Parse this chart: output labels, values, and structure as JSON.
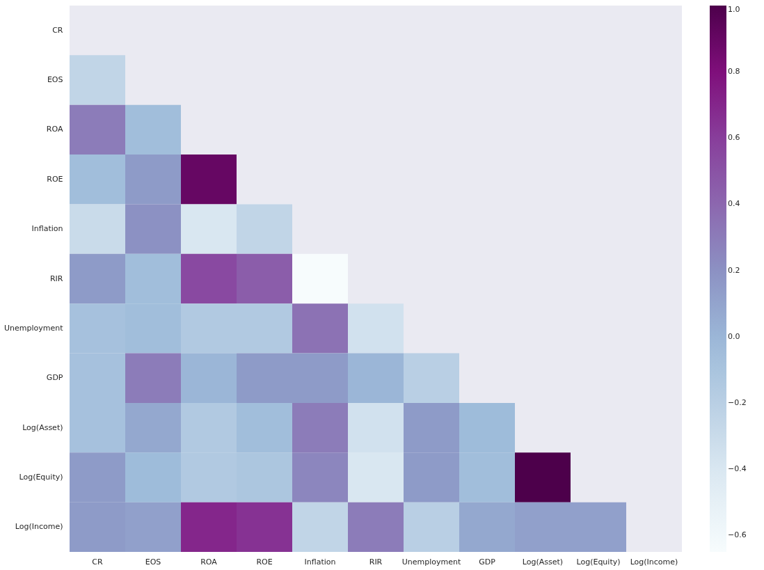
{
  "chart_data": {
    "type": "heatmap",
    "categories": [
      "CR",
      "EOS",
      "ROA",
      "ROE",
      "Inflation",
      "RIR",
      "Unemployment",
      "GDP",
      "Log(Asset)",
      "Log(Equity)",
      "Log(Income)"
    ],
    "y_categories": [
      "CR",
      "EOS",
      "ROA",
      "ROE",
      "Inflation",
      "RIR",
      "Unemployment",
      "GDP",
      "Log(Asset)",
      "Log(Equity)",
      "Log(Income)"
    ],
    "cells": [
      [
        null,
        null,
        null,
        null,
        null,
        null,
        null,
        null,
        null,
        null,
        null
      ],
      [
        -0.25,
        null,
        null,
        null,
        null,
        null,
        null,
        null,
        null,
        null,
        null
      ],
      [
        0.3,
        -0.05,
        null,
        null,
        null,
        null,
        null,
        null,
        null,
        null,
        null
      ],
      [
        -0.05,
        0.15,
        0.9,
        null,
        null,
        null,
        null,
        null,
        null,
        null,
        null
      ],
      [
        -0.3,
        0.2,
        -0.4,
        -0.25,
        null,
        null,
        null,
        null,
        null,
        null,
        null
      ],
      [
        0.15,
        -0.05,
        0.55,
        0.45,
        -0.65,
        null,
        null,
        null,
        null,
        null,
        null
      ],
      [
        -0.08,
        -0.05,
        -0.15,
        -0.15,
        0.35,
        -0.35,
        null,
        null,
        null,
        null,
        null
      ],
      [
        -0.08,
        0.3,
        0.0,
        0.15,
        0.15,
        0.0,
        -0.2,
        null,
        null,
        null,
        null
      ],
      [
        -0.08,
        0.08,
        -0.15,
        -0.05,
        0.3,
        -0.35,
        0.15,
        -0.03,
        null,
        null,
        null
      ],
      [
        0.15,
        -0.03,
        -0.15,
        -0.12,
        0.25,
        -0.4,
        0.15,
        -0.05,
        1.0,
        null,
        null
      ],
      [
        0.15,
        0.12,
        0.7,
        0.65,
        -0.25,
        0.3,
        -0.2,
        0.08,
        0.12,
        0.12,
        null
      ]
    ],
    "clim": [
      -0.65,
      1.0
    ],
    "cticks": [
      -0.6,
      -0.4,
      -0.2,
      {
        "value": 0,
        "label": "0.0"
      },
      0.2,
      0.4,
      0.6,
      0.8,
      {
        "value": 1,
        "label": "1.0"
      }
    ]
  }
}
